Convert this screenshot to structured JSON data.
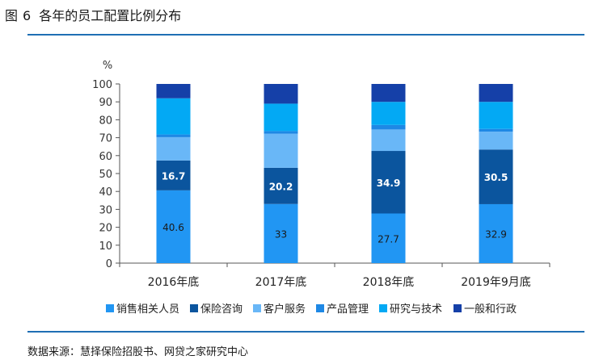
{
  "figure": {
    "label": "图",
    "number": "6",
    "title": "各年的员工配置比例分布"
  },
  "source": "数据来源：慧择保险招股书、网贷之家研究中心",
  "chart_data": {
    "type": "bar",
    "stacked": true,
    "title": "各年的员工配置比例分布",
    "ylabel": "%",
    "xlabel": "",
    "ylim": [
      0,
      100
    ],
    "yticks": [
      "0",
      "10",
      "20",
      "30",
      "40",
      "50",
      "60",
      "70",
      "80",
      "90",
      "100"
    ],
    "grid": false,
    "legend_position": "bottom",
    "categories": [
      "2016年底",
      "2017年底",
      "2018年底",
      "2019年9月底"
    ],
    "series": [
      {
        "name": "销售相关人员",
        "color": "#2196f3",
        "values": [
          40.6,
          33,
          27.7,
          32.9
        ],
        "labels": [
          "40.6",
          "33",
          "27.7",
          "32.9"
        ]
      },
      {
        "name": "保险咨询",
        "color": "#0b559e",
        "values": [
          16.7,
          20.2,
          34.9,
          30.5
        ],
        "labels": [
          "16.7",
          "20.2",
          "34.9",
          "30.5"
        ]
      },
      {
        "name": "客户服务",
        "color": "#69b7f7",
        "values": [
          13.0,
          19.0,
          12.0,
          10.0
        ],
        "labels": [
          "",
          "",
          "",
          ""
        ]
      },
      {
        "name": "产品管理",
        "color": "#1e88e5",
        "values": [
          1.5,
          1.5,
          2.5,
          1.5
        ],
        "labels": [
          "",
          "",
          "",
          ""
        ]
      },
      {
        "name": "研究与技术",
        "color": "#03a9f4",
        "values": [
          20.2,
          15.3,
          12.9,
          15.1
        ],
        "labels": [
          "",
          "",
          "",
          ""
        ]
      },
      {
        "name": "一般和行政",
        "color": "#1540a8",
        "values": [
          8.0,
          11.0,
          10.0,
          10.0
        ],
        "labels": [
          "",
          "",
          "",
          ""
        ]
      }
    ]
  }
}
